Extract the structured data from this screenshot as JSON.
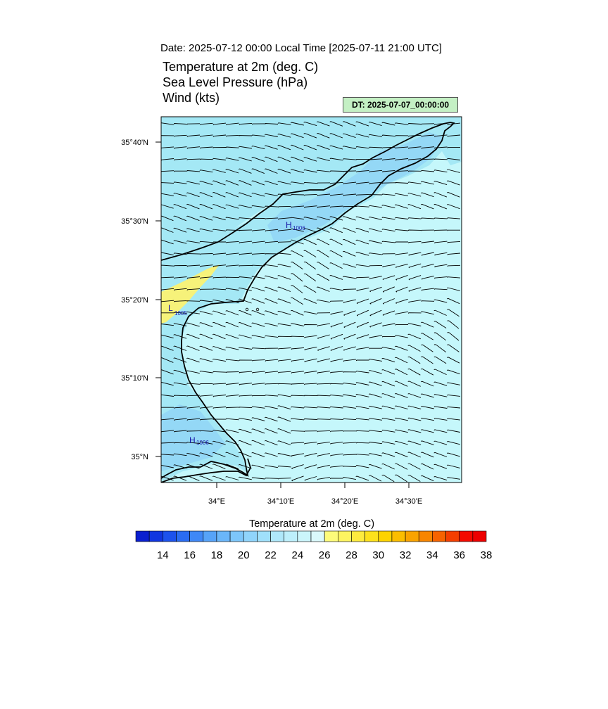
{
  "header": {
    "date_line": "Date: 2025-07-12  00:00 Local Time [2025-07-11  21:00 UTC]",
    "fields": [
      "Temperature at 2m   (deg. C)",
      "Sea Level Pressure   (hPa)",
      "Wind   (kts)"
    ],
    "dt_box": "DT: 2025-07-07_00:00:00"
  },
  "map": {
    "lat_ticks": [
      "35°40'N",
      "35°30'N",
      "35°20'N",
      "35°10'N",
      "35°N"
    ],
    "lon_ticks": [
      "34°E",
      "34°10'E",
      "34°20'E",
      "34°30'E"
    ],
    "pressure_labels": [
      {
        "type": "H",
        "value": "1006",
        "color": "#1a1aa8"
      },
      {
        "type": "L",
        "value": "1005",
        "color": "#1a1aa8"
      },
      {
        "type": "H",
        "value": "1006",
        "color": "#1a1aa8"
      }
    ],
    "colors": {
      "sea": "#c5f7fb",
      "land": "#a4e8f5",
      "hills": "#94d8f6",
      "warm": "#f6f27a",
      "coast": "#000000"
    }
  },
  "colorbar": {
    "title": "Temperature at 2m  (deg. C)",
    "tick_labels": [
      "14",
      "16",
      "18",
      "20",
      "22",
      "24",
      "26",
      "28",
      "30",
      "32",
      "34",
      "36",
      "38"
    ],
    "colors": [
      "#0a1fcf",
      "#1036e0",
      "#1c52ec",
      "#2a6cf2",
      "#3f88f6",
      "#56a3f8",
      "#6ab6f9",
      "#7dc6fa",
      "#90d4fb",
      "#a0e0fb",
      "#afe8fa",
      "#bdeffb",
      "#cbf5fb",
      "#daf9fb",
      "#fdfb7a",
      "#fdf460",
      "#fdeb3e",
      "#fde11c",
      "#fdd300",
      "#fbbd00",
      "#f9a300",
      "#f78500",
      "#f66300",
      "#f43e00",
      "#f40a00",
      "#ed0000"
    ]
  }
}
